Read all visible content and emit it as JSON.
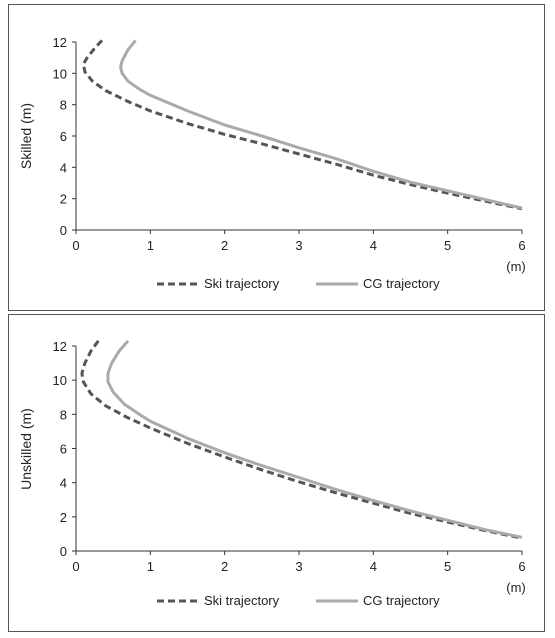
{
  "colors": {
    "ski": "#555555",
    "cg": "#aaaaaa",
    "axis": "#333333",
    "text": "#222222"
  },
  "chart_data": [
    {
      "type": "line",
      "title": "",
      "xlabel": "",
      "ylabel": "Skilled (m)",
      "x_unit": "(m)",
      "xlim": [
        0,
        6
      ],
      "ylim": [
        0,
        12
      ],
      "xticks": [
        "0",
        "1",
        "2",
        "3",
        "4",
        "5",
        "6"
      ],
      "yticks": [
        "0",
        "2",
        "4",
        "6",
        "8",
        "10",
        "12"
      ],
      "grid": false,
      "legend_position": "bottom",
      "series": [
        {
          "name": "Ski trajectory",
          "style": "dashed",
          "points": [
            [
              0.35,
              12.1
            ],
            [
              0.25,
              11.6
            ],
            [
              0.15,
              11.0
            ],
            [
              0.1,
              10.6
            ],
            [
              0.12,
              10.1
            ],
            [
              0.22,
              9.5
            ],
            [
              0.4,
              8.9
            ],
            [
              0.7,
              8.2
            ],
            [
              1.0,
              7.6
            ],
            [
              1.5,
              6.8
            ],
            [
              2.0,
              6.1
            ],
            [
              2.5,
              5.5
            ],
            [
              3.0,
              4.85
            ],
            [
              3.5,
              4.2
            ],
            [
              4.0,
              3.5
            ],
            [
              4.5,
              2.9
            ],
            [
              5.0,
              2.35
            ],
            [
              5.5,
              1.85
            ],
            [
              6.0,
              1.35
            ]
          ]
        },
        {
          "name": "CG trajectory",
          "style": "solid",
          "points": [
            [
              0.8,
              12.1
            ],
            [
              0.7,
              11.5
            ],
            [
              0.62,
              10.8
            ],
            [
              0.6,
              10.4
            ],
            [
              0.62,
              10.0
            ],
            [
              0.7,
              9.5
            ],
            [
              0.85,
              9.0
            ],
            [
              1.0,
              8.6
            ],
            [
              1.5,
              7.6
            ],
            [
              2.0,
              6.7
            ],
            [
              2.5,
              6.0
            ],
            [
              3.0,
              5.25
            ],
            [
              3.5,
              4.55
            ],
            [
              4.0,
              3.75
            ],
            [
              4.5,
              3.05
            ],
            [
              5.0,
              2.5
            ],
            [
              5.5,
              1.95
            ],
            [
              6.0,
              1.4
            ]
          ]
        }
      ]
    },
    {
      "type": "line",
      "title": "",
      "xlabel": "",
      "ylabel": "Unskilled (m)",
      "x_unit": "(m)",
      "xlim": [
        0,
        6
      ],
      "ylim": [
        0,
        12
      ],
      "xticks": [
        "0",
        "1",
        "2",
        "3",
        "4",
        "5",
        "6"
      ],
      "yticks": [
        "0",
        "2",
        "4",
        "6",
        "8",
        "10",
        "12"
      ],
      "grid": false,
      "legend_position": "bottom",
      "series": [
        {
          "name": "Ski trajectory",
          "style": "dashed",
          "points": [
            [
              0.3,
              12.3
            ],
            [
              0.2,
              11.7
            ],
            [
              0.12,
              11.0
            ],
            [
              0.08,
              10.4
            ],
            [
              0.1,
              9.9
            ],
            [
              0.2,
              9.2
            ],
            [
              0.4,
              8.5
            ],
            [
              0.7,
              7.8
            ],
            [
              1.0,
              7.2
            ],
            [
              1.5,
              6.3
            ],
            [
              2.0,
              5.5
            ],
            [
              2.5,
              4.75
            ],
            [
              3.0,
              4.05
            ],
            [
              3.5,
              3.4
            ],
            [
              4.0,
              2.8
            ],
            [
              4.5,
              2.2
            ],
            [
              5.0,
              1.7
            ],
            [
              5.5,
              1.2
            ],
            [
              6.0,
              0.75
            ]
          ]
        },
        {
          "name": "CG trajectory",
          "style": "solid",
          "points": [
            [
              0.7,
              12.3
            ],
            [
              0.58,
              11.7
            ],
            [
              0.48,
              11.0
            ],
            [
              0.43,
              10.4
            ],
            [
              0.43,
              9.9
            ],
            [
              0.5,
              9.3
            ],
            [
              0.65,
              8.6
            ],
            [
              0.85,
              8.0
            ],
            [
              1.0,
              7.6
            ],
            [
              1.5,
              6.6
            ],
            [
              2.0,
              5.75
            ],
            [
              2.5,
              5.0
            ],
            [
              3.0,
              4.3
            ],
            [
              3.5,
              3.6
            ],
            [
              4.0,
              2.95
            ],
            [
              4.5,
              2.35
            ],
            [
              5.0,
              1.8
            ],
            [
              5.5,
              1.25
            ],
            [
              6.0,
              0.8
            ]
          ]
        }
      ]
    }
  ]
}
